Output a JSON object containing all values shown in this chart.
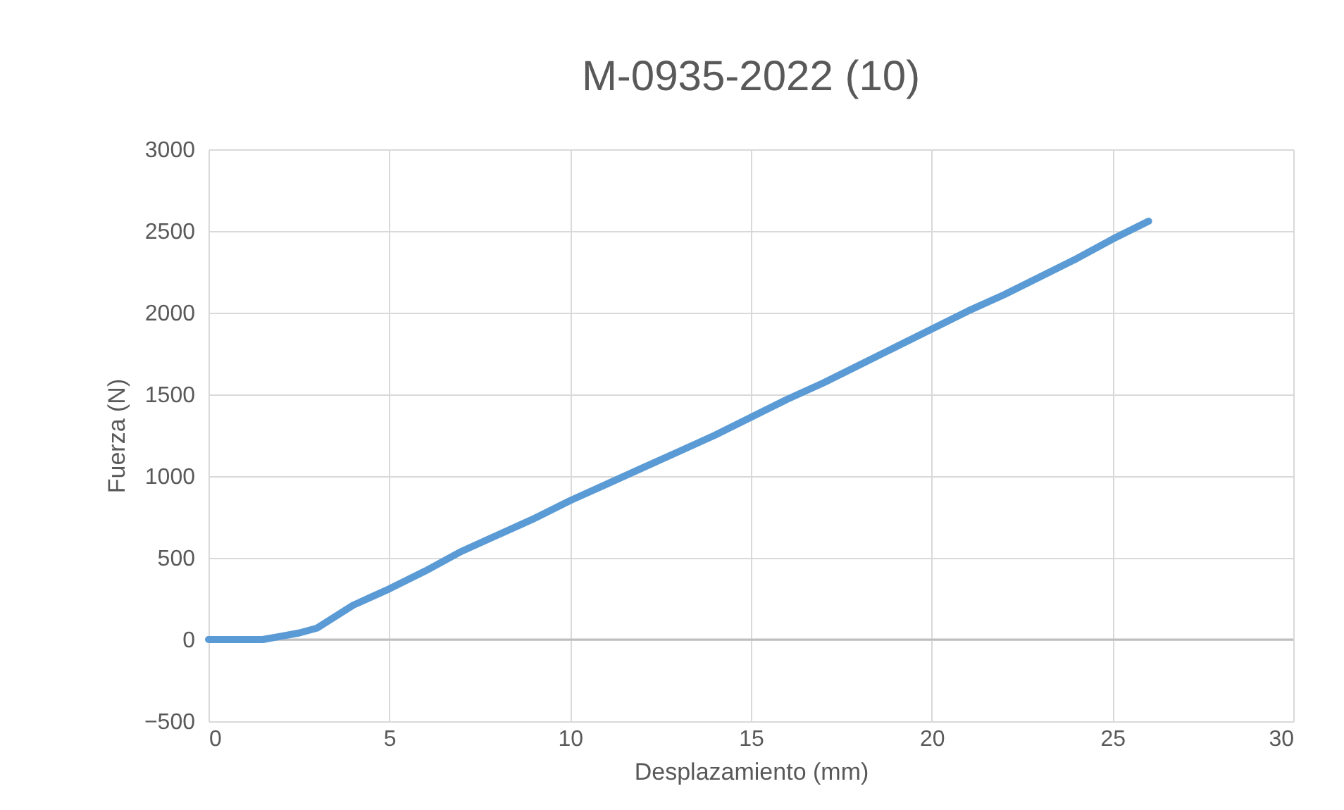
{
  "chart_data": {
    "type": "line",
    "title": "M-0935-2022 (10)",
    "xlabel": "Desplazamiento (mm)",
    "ylabel": "Fuerza (N)",
    "x": [
      0,
      0.5,
      1,
      1.5,
      2,
      2.5,
      3,
      3.5,
      4,
      4.5,
      5,
      6,
      7,
      8,
      9,
      10,
      11,
      12,
      13,
      14,
      15,
      16,
      17,
      18,
      19,
      20,
      21,
      22,
      23,
      24,
      25,
      26
    ],
    "series": [
      {
        "color": "#5b9bd5",
        "values": [
          0,
          0,
          0,
          0,
          20,
          40,
          70,
          140,
          210,
          260,
          310,
          420,
          540,
          640,
          740,
          850,
          950,
          1050,
          1150,
          1250,
          1360,
          1470,
          1570,
          1680,
          1790,
          1900,
          2010,
          2110,
          2220,
          2330,
          2450,
          2560
        ]
      }
    ],
    "xlim": [
      0,
      30
    ],
    "xticks": [
      0,
      5,
      10,
      15,
      20,
      25,
      30
    ],
    "ylim": [
      -500,
      3000
    ],
    "yticks": [
      -500,
      0,
      500,
      1000,
      1500,
      2000,
      2500,
      3000
    ],
    "grid": true,
    "marker": "none",
    "line_style": "solid"
  }
}
